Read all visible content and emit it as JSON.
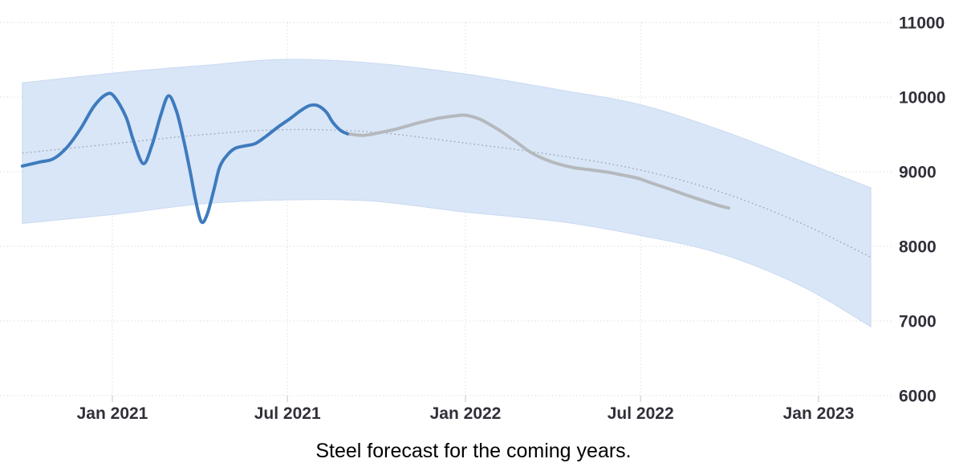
{
  "caption": "Steel forecast for the coming years.",
  "colors": {
    "actual_line": "#3e7bbd",
    "forecast_line": "#b5b9bd",
    "band_fill": "#d9e6f8",
    "band_edge": "#c9d9f1",
    "midline": "#9fa6af",
    "grid": "#d6d6d6",
    "tick": "#c4c4c4",
    "axis_text": "#30303a"
  },
  "chart_data": {
    "type": "line",
    "title": "",
    "xlabel": "",
    "ylabel": "",
    "x_unit": "days since 2021-01-01",
    "x_range_days": [
      -93,
      784
    ],
    "ylim": [
      6000,
      11000
    ],
    "grid": true,
    "legend": "none",
    "y_axis_side": "right",
    "x_ticks": [
      {
        "label": "Jan 2021",
        "day": 0
      },
      {
        "label": "Jul 2021",
        "day": 181
      },
      {
        "label": "Jan 2022",
        "day": 365
      },
      {
        "label": "Jul 2022",
        "day": 546
      },
      {
        "label": "Jan 2023",
        "day": 730
      }
    ],
    "y_ticks": [
      6000,
      7000,
      8000,
      9000,
      10000,
      11000
    ],
    "band": {
      "name": "forecast-confidence-band",
      "points_day_hi_lo": [
        [
          -93,
          10190,
          8308
        ],
        [
          8,
          10331,
          8437
        ],
        [
          91,
          10420,
          8567
        ],
        [
          174,
          10504,
          8621
        ],
        [
          265,
          10460,
          8610
        ],
        [
          365,
          10309,
          8459
        ],
        [
          464,
          10093,
          8329
        ],
        [
          546,
          9898,
          8145
        ],
        [
          630,
          9552,
          7896
        ],
        [
          713,
          9141,
          7463
        ],
        [
          784,
          8784,
          6923
        ]
      ]
    },
    "series": [
      {
        "name": "actual",
        "style": "solid",
        "points_day_value": [
          [
            -93,
            9076
          ],
          [
            -75,
            9130
          ],
          [
            -61,
            9173
          ],
          [
            -47,
            9325
          ],
          [
            -33,
            9573
          ],
          [
            -19,
            9876
          ],
          [
            -6,
            10039
          ],
          [
            2,
            10006
          ],
          [
            14,
            9736
          ],
          [
            22,
            9411
          ],
          [
            32,
            9108
          ],
          [
            41,
            9357
          ],
          [
            50,
            9757
          ],
          [
            58,
            10017
          ],
          [
            66,
            9822
          ],
          [
            73,
            9465
          ],
          [
            80,
            9032
          ],
          [
            86,
            8621
          ],
          [
            92,
            8329
          ],
          [
            98,
            8426
          ],
          [
            105,
            8762
          ],
          [
            111,
            9065
          ],
          [
            119,
            9227
          ],
          [
            127,
            9314
          ],
          [
            137,
            9346
          ],
          [
            148,
            9379
          ],
          [
            159,
            9476
          ],
          [
            172,
            9606
          ],
          [
            184,
            9714
          ],
          [
            195,
            9822
          ],
          [
            204,
            9887
          ],
          [
            212,
            9887
          ],
          [
            221,
            9801
          ],
          [
            228,
            9660
          ],
          [
            236,
            9552
          ],
          [
            243,
            9509
          ]
        ]
      },
      {
        "name": "forecast",
        "style": "solid",
        "points_day_value": [
          [
            243,
            9509
          ],
          [
            259,
            9487
          ],
          [
            275,
            9520
          ],
          [
            294,
            9573
          ],
          [
            315,
            9649
          ],
          [
            336,
            9714
          ],
          [
            353,
            9746
          ],
          [
            365,
            9757
          ],
          [
            380,
            9703
          ],
          [
            398,
            9573
          ],
          [
            415,
            9422
          ],
          [
            431,
            9271
          ],
          [
            446,
            9173
          ],
          [
            460,
            9108
          ],
          [
            477,
            9054
          ],
          [
            496,
            9022
          ],
          [
            514,
            8989
          ],
          [
            531,
            8946
          ],
          [
            543,
            8913
          ],
          [
            557,
            8849
          ],
          [
            577,
            8762
          ],
          [
            596,
            8675
          ],
          [
            614,
            8600
          ],
          [
            627,
            8546
          ],
          [
            637,
            8513
          ]
        ]
      },
      {
        "name": "forecast-midline",
        "style": "dotted",
        "points_day_value": [
          [
            -93,
            9249
          ],
          [
            8,
            9384
          ],
          [
            91,
            9494
          ],
          [
            174,
            9562
          ],
          [
            265,
            9535
          ],
          [
            365,
            9384
          ],
          [
            464,
            9211
          ],
          [
            546,
            9022
          ],
          [
            630,
            8724
          ],
          [
            713,
            8302
          ],
          [
            784,
            7854
          ]
        ]
      }
    ]
  }
}
